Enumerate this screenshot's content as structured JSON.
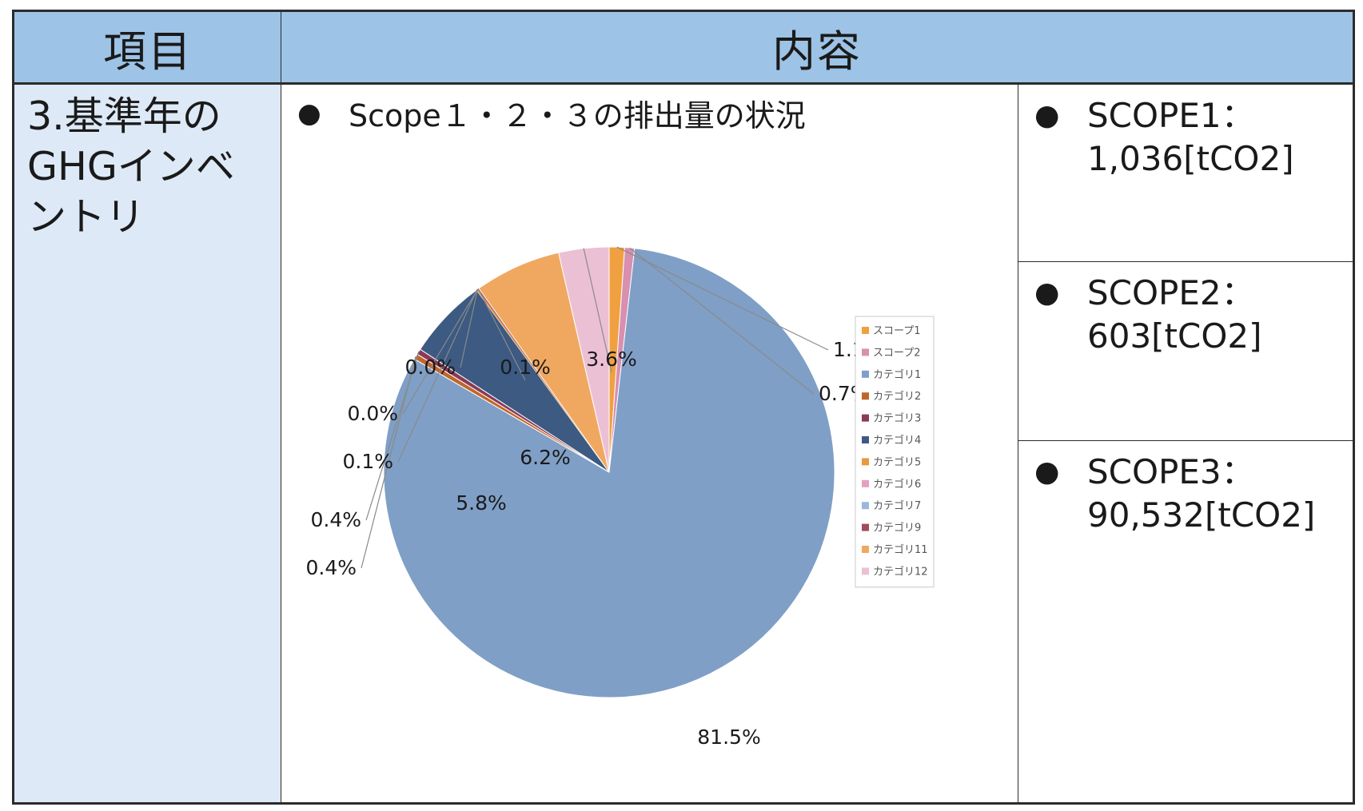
{
  "header": {
    "item_label": "項目",
    "content_label": "内容"
  },
  "item_text": "3.基準年の\nGHGインベ\nントリ",
  "content_heading": "Scope１・２・３の排出量の状況",
  "bullet_glyph": "●",
  "scopes": [
    {
      "text": "SCOPE1：\n1,036[tCO2]"
    },
    {
      "text": "SCOPE2：\n603[tCO2]"
    },
    {
      "text": "SCOPE3：\n90,532[tCO2]"
    }
  ],
  "chart_data": {
    "type": "pie",
    "title": "",
    "start_angle_deg": 0,
    "direction": "clockwise",
    "legend_position": "right",
    "slices": [
      {
        "label": "スコープ1",
        "value": 1.1,
        "pct_label": "1.1%",
        "color": "#f0a040"
      },
      {
        "label": "スコープ2",
        "value": 0.7,
        "pct_label": "0.7%",
        "color": "#d88fb0"
      },
      {
        "label": "カテゴリ1",
        "value": 81.5,
        "pct_label": "81.5%",
        "color": "#7f9fc6"
      },
      {
        "label": "カテゴリ2",
        "value": 0.4,
        "pct_label": "0.4%",
        "color": "#c0662a"
      },
      {
        "label": "カテゴリ3",
        "value": 0.4,
        "pct_label": "0.4%",
        "color": "#8a3a56"
      },
      {
        "label": "カテゴリ4",
        "value": 5.8,
        "pct_label": "5.8%",
        "color": "#3c5a82"
      },
      {
        "label": "カテゴリ5",
        "value": 0.1,
        "pct_label": "0.1%",
        "color": "#e89a40"
      },
      {
        "label": "カテゴリ6",
        "value": 0.0,
        "pct_label": "0.0%",
        "color": "#e6a0c0"
      },
      {
        "label": "カテゴリ7",
        "value": 0.0,
        "pct_label": "0.0%",
        "color": "#9bb8dc"
      },
      {
        "label": "カテゴリ9",
        "value": 0.1,
        "pct_label": "0.1%",
        "color": "#a04c5c"
      },
      {
        "label": "カテゴリ11",
        "value": 6.2,
        "pct_label": "6.2%",
        "color": "#f0a860"
      },
      {
        "label": "カテゴリ12",
        "value": 3.6,
        "pct_label": "3.6%",
        "color": "#ecc0d4"
      }
    ]
  }
}
